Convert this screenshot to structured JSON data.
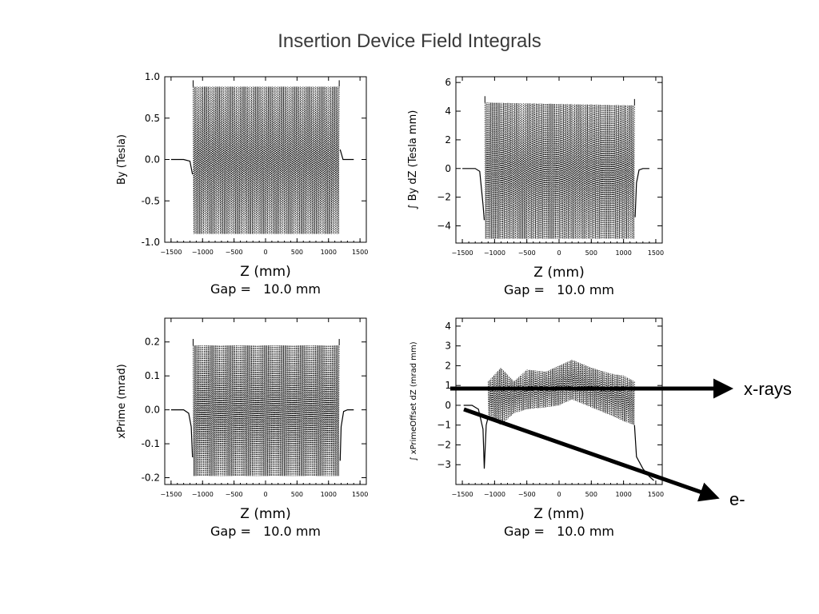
{
  "page": {
    "title": "Insertion Device Field Integrals"
  },
  "annotations": {
    "xrays_label": "x-rays",
    "electron_label": "e-"
  },
  "chart_data": [
    {
      "id": "by",
      "type": "line",
      "ylabel": "By (Tesla)",
      "xlabel": "Z (mm)",
      "subtitle": "Gap =   10.0 mm",
      "xlim": [
        -1600,
        1600
      ],
      "ylim": [
        -1.0,
        1.0
      ],
      "xticks": [
        -1500,
        -1000,
        -500,
        0,
        500,
        1000,
        1500
      ],
      "yticks": [
        -1.0,
        -0.5,
        0.0,
        0.5,
        1.0
      ],
      "ytick_labels": [
        "-1.0",
        "-0.5",
        "0.0",
        "0.5",
        "1.0"
      ],
      "series": [
        {
          "kind": "oscillating",
          "x_range": [
            -1150,
            1170
          ],
          "upper": [
            0.88,
            0.88
          ],
          "lower": [
            -0.9,
            -0.9
          ],
          "left_tail": [
            [
              -1500,
              0.0
            ],
            [
              -1300,
              0.0
            ],
            [
              -1200,
              -0.02
            ],
            [
              -1160,
              -0.18
            ]
          ],
          "right_tail": [
            [
              1185,
              0.12
            ],
            [
              1230,
              0.0
            ],
            [
              1300,
              0.0
            ],
            [
              1400,
              0.0
            ]
          ]
        }
      ]
    },
    {
      "id": "int_by",
      "type": "line",
      "ylabel": "∫ By dZ (Tesla mm)",
      "xlabel": "Z (mm)",
      "subtitle": "Gap =   10.0 mm",
      "xlim": [
        -1600,
        1600
      ],
      "ylim": [
        -5.2,
        6.4
      ],
      "xticks": [
        -1500,
        -1000,
        -500,
        0,
        500,
        1000,
        1500
      ],
      "yticks": [
        -4,
        -2,
        0,
        2,
        4,
        6
      ],
      "ytick_labels": [
        "−4",
        "−2",
        "0",
        "2",
        "4",
        "6"
      ],
      "series": [
        {
          "kind": "oscillating",
          "x_range": [
            -1150,
            1170
          ],
          "upper": [
            4.6,
            4.4
          ],
          "lower": [
            -4.9,
            -4.9
          ],
          "left_tail": [
            [
              -1500,
              0.0
            ],
            [
              -1300,
              0.0
            ],
            [
              -1230,
              -0.2
            ],
            [
              -1180,
              -2.5
            ],
            [
              -1160,
              -3.6
            ]
          ],
          "right_tail": [
            [
              1180,
              -3.4
            ],
            [
              1200,
              -1.0
            ],
            [
              1240,
              -0.1
            ],
            [
              1300,
              0.0
            ],
            [
              1400,
              0.0
            ]
          ]
        }
      ]
    },
    {
      "id": "xprime",
      "type": "line",
      "ylabel": "xPrime (mrad)",
      "xlabel": "Z (mm)",
      "subtitle": "Gap =   10.0 mm",
      "xlim": [
        -1600,
        1600
      ],
      "ylim": [
        -0.22,
        0.27
      ],
      "xticks": [
        -1500,
        -1000,
        -500,
        0,
        500,
        1000,
        1500
      ],
      "yticks": [
        -0.2,
        -0.1,
        0.0,
        0.1,
        0.2
      ],
      "ytick_labels": [
        "-0.2",
        "-0.1",
        "0.0",
        "0.1",
        "0.2"
      ],
      "series": [
        {
          "kind": "oscillating",
          "x_range": [
            -1150,
            1170
          ],
          "upper": [
            0.19,
            0.19
          ],
          "lower": [
            -0.195,
            -0.195
          ],
          "left_tail": [
            [
              -1500,
              0.0
            ],
            [
              -1300,
              0.0
            ],
            [
              -1220,
              -0.01
            ],
            [
              -1180,
              -0.05
            ],
            [
              -1160,
              -0.14
            ]
          ],
          "right_tail": [
            [
              1185,
              -0.15
            ],
            [
              1200,
              -0.05
            ],
            [
              1240,
              -0.005
            ],
            [
              1300,
              0.0
            ],
            [
              1400,
              0.0
            ]
          ]
        }
      ]
    },
    {
      "id": "int_xprime",
      "type": "line",
      "ylabel": "∫ xPrimeOffset dZ (mrad mm)",
      "xlabel": "Z (mm)",
      "subtitle": "Gap =   10.0 mm",
      "xlim": [
        -1600,
        1600
      ],
      "ylim": [
        -4.0,
        4.4
      ],
      "xticks": [
        -1500,
        -1000,
        -500,
        0,
        500,
        1000,
        1500
      ],
      "yticks": [
        -3,
        -2,
        -1,
        0,
        1,
        2,
        3,
        4
      ],
      "ytick_labels": [
        "−3",
        "−2",
        "−1",
        "0",
        "1",
        "2",
        "3",
        "4"
      ],
      "series": [
        {
          "kind": "oscillating",
          "x_range": [
            -1100,
            1170
          ],
          "upper_points": [
            [
              -1100,
              1.2
            ],
            [
              -900,
              1.9
            ],
            [
              -700,
              1.2
            ],
            [
              -500,
              1.8
            ],
            [
              -200,
              1.7
            ],
            [
              0,
              2.0
            ],
            [
              200,
              2.3
            ],
            [
              500,
              1.9
            ],
            [
              800,
              1.6
            ],
            [
              1000,
              1.5
            ],
            [
              1170,
              1.2
            ]
          ],
          "lower_points": [
            [
              -1100,
              -0.6
            ],
            [
              -900,
              -1.0
            ],
            [
              -700,
              -0.4
            ],
            [
              -500,
              -0.2
            ],
            [
              -200,
              -0.1
            ],
            [
              0,
              0.0
            ],
            [
              200,
              0.3
            ],
            [
              500,
              -0.1
            ],
            [
              800,
              -0.5
            ],
            [
              1000,
              -0.8
            ],
            [
              1170,
              -1.0
            ]
          ],
          "left_tail": [
            [
              -1480,
              0.0
            ],
            [
              -1350,
              0.0
            ],
            [
              -1250,
              -0.2
            ],
            [
              -1180,
              -1.2
            ],
            [
              -1160,
              -3.2
            ],
            [
              -1130,
              -1.0
            ],
            [
              -1100,
              -0.6
            ]
          ],
          "right_tail": [
            [
              1170,
              -1.0
            ],
            [
              1200,
              -2.6
            ],
            [
              1300,
              -3.2
            ],
            [
              1400,
              -3.6
            ],
            [
              1470,
              -3.8
            ]
          ]
        }
      ]
    }
  ]
}
